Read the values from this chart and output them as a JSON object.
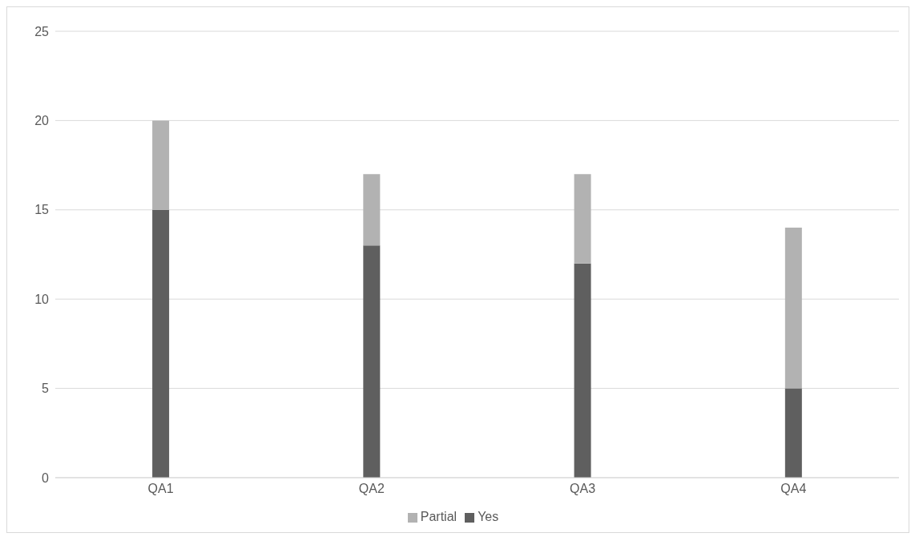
{
  "chart_data": {
    "type": "bar",
    "stacked": true,
    "categories": [
      "QA1",
      "QA2",
      "QA3",
      "QA4"
    ],
    "series": [
      {
        "name": "Yes",
        "color": "#5f5f5f",
        "values": [
          15,
          13,
          12,
          5
        ]
      },
      {
        "name": "Partial",
        "color": "#b2b2b2",
        "values": [
          5,
          4,
          5,
          9
        ]
      }
    ],
    "ylim": [
      0,
      25
    ],
    "yticks": [
      0,
      5,
      10,
      15,
      20,
      25
    ],
    "grid": "y",
    "legend": "bottom"
  }
}
